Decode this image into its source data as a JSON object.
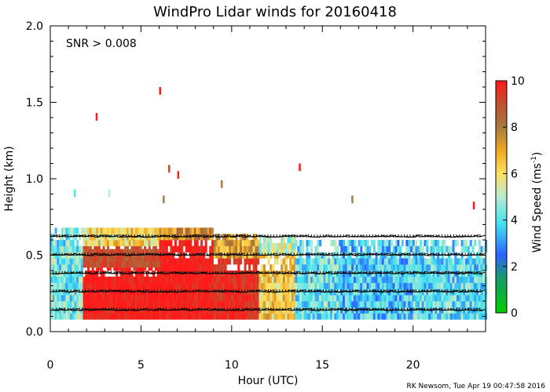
{
  "chart_data": {
    "type": "heatmap",
    "title": "WindPro Lidar winds for 20160418",
    "annotation": "SNR > 0.008",
    "xlabel": "Hour (UTC)",
    "ylabel": "Height (km)",
    "xlim": [
      0,
      24
    ],
    "ylim": [
      0,
      2.0
    ],
    "x_ticks": [
      0,
      5,
      10,
      15,
      20
    ],
    "x_tick_labels": [
      "0",
      "5",
      "10",
      "15",
      "20"
    ],
    "y_ticks": [
      0.0,
      0.5,
      1.0,
      1.5,
      2.0
    ],
    "y_tick_labels": [
      "0.0",
      "0.5",
      "1.0",
      "1.5",
      "2.0"
    ],
    "colorbar": {
      "label": "Wind Speed (ms",
      "label_sup": "-1",
      "label_close": ")",
      "range": [
        0,
        10
      ],
      "ticks": [
        0,
        2,
        4,
        6,
        8,
        10
      ],
      "tick_labels": [
        "0",
        "2",
        "4",
        "6",
        "8",
        "10"
      ]
    },
    "footer": "RK Newsom, Tue Apr 19 00:47:58 2016",
    "colors": {
      "calm": "#00cc00",
      "low": "#2a64ff",
      "moderate": "#40e0f0",
      "fresh": "#ffe060",
      "strong": "#b07a28",
      "max": "#ff1a1a"
    },
    "regions": [
      {
        "t0": 0.0,
        "t1": 1.8,
        "h0": 0.08,
        "h1": 0.68,
        "speed": 4.3
      },
      {
        "t0": 1.8,
        "t1": 6.0,
        "h0": 0.08,
        "h1": 0.42,
        "speed": 10.0
      },
      {
        "t0": 1.8,
        "t1": 6.0,
        "h0": 0.42,
        "h1": 0.56,
        "speed": 9.0
      },
      {
        "t0": 1.8,
        "t1": 6.0,
        "h0": 0.56,
        "h1": 0.68,
        "speed": 6.2
      },
      {
        "t0": 6.0,
        "t1": 9.0,
        "h0": 0.08,
        "h1": 0.6,
        "speed": 10.0
      },
      {
        "t0": 6.0,
        "t1": 9.0,
        "h0": 0.6,
        "h1": 0.68,
        "speed": 7.5
      },
      {
        "t0": 9.0,
        "t1": 11.5,
        "h0": 0.08,
        "h1": 0.48,
        "speed": 9.6
      },
      {
        "t0": 9.0,
        "t1": 11.5,
        "h0": 0.48,
        "h1": 0.62,
        "speed": 7.2
      },
      {
        "t0": 11.5,
        "t1": 13.5,
        "h0": 0.08,
        "h1": 0.5,
        "speed": 6.4
      },
      {
        "t0": 11.5,
        "t1": 13.5,
        "h0": 0.5,
        "h1": 0.6,
        "speed": 5.2
      },
      {
        "t0": 13.5,
        "t1": 16.0,
        "h0": 0.08,
        "h1": 0.58,
        "speed": 4.1
      },
      {
        "t0": 16.0,
        "t1": 20.0,
        "h0": 0.08,
        "h1": 0.6,
        "speed": 3.6
      },
      {
        "t0": 20.0,
        "t1": 24.0,
        "h0": 0.08,
        "h1": 0.6,
        "speed": 4.0
      }
    ],
    "scattered_cells": [
      {
        "t": 2.5,
        "h": 1.38,
        "speed": 10
      },
      {
        "t": 6.0,
        "h": 1.55,
        "speed": 10
      },
      {
        "t": 6.5,
        "h": 1.04,
        "speed": 9
      },
      {
        "t": 7.0,
        "h": 1.0,
        "speed": 10
      },
      {
        "t": 13.7,
        "h": 1.05,
        "speed": 10
      },
      {
        "t": 1.3,
        "h": 0.88,
        "speed": 4
      },
      {
        "t": 3.2,
        "h": 0.88,
        "speed": 5
      },
      {
        "t": 6.2,
        "h": 0.84,
        "speed": 8
      },
      {
        "t": 9.4,
        "h": 0.94,
        "speed": 8
      },
      {
        "t": 16.6,
        "h": 0.84,
        "speed": 8
      },
      {
        "t": 23.3,
        "h": 0.8,
        "speed": 10
      }
    ],
    "wind_profile_heights_km": [
      0.14,
      0.26,
      0.38,
      0.5,
      0.62
    ]
  }
}
